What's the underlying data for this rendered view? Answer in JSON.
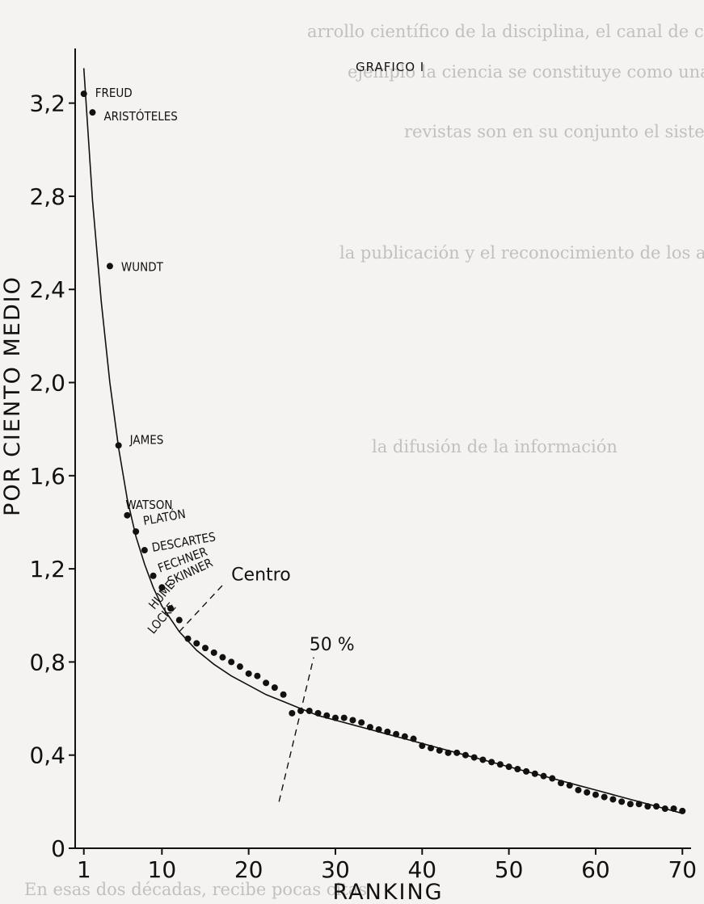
{
  "chart_data": {
    "type": "scatter",
    "title": "GRAFICO I",
    "xlabel": "RANKING",
    "ylabel": "POR CIENTO MEDIO",
    "xlim": [
      0,
      71
    ],
    "ylim": [
      0,
      3.4
    ],
    "x_ticks": [
      {
        "value": 1,
        "label": "1"
      },
      {
        "value": 10,
        "label": "10"
      },
      {
        "value": 20,
        "label": "20"
      },
      {
        "value": 30,
        "label": "30"
      },
      {
        "value": 40,
        "label": "40"
      },
      {
        "value": 50,
        "label": "50"
      },
      {
        "value": 60,
        "label": "60"
      },
      {
        "value": 70,
        "label": "70"
      }
    ],
    "y_ticks": [
      {
        "value": 0,
        "label": "0"
      },
      {
        "value": 0.4,
        "label": "0,4"
      },
      {
        "value": 0.8,
        "label": "0,8"
      },
      {
        "value": 1.2,
        "label": "1,2"
      },
      {
        "value": 1.6,
        "label": "1,6"
      },
      {
        "value": 2.0,
        "label": "2,0"
      },
      {
        "value": 2.4,
        "label": "2,4"
      },
      {
        "value": 2.8,
        "label": "2,8"
      },
      {
        "value": 3.2,
        "label": "3,2"
      }
    ],
    "grid": false,
    "points": [
      {
        "x": 1,
        "y": 3.24,
        "label": "FREUD"
      },
      {
        "x": 2,
        "y": 3.16,
        "label": "ARISTÓTELES"
      },
      {
        "x": 4,
        "y": 2.5,
        "label": "WUNDT"
      },
      {
        "x": 5,
        "y": 1.73,
        "label": "JAMES"
      },
      {
        "x": 6,
        "y": 1.43,
        "label": "WATSON"
      },
      {
        "x": 7,
        "y": 1.36,
        "label": "PLATÓN"
      },
      {
        "x": 8,
        "y": 1.28,
        "label": "DESCARTES"
      },
      {
        "x": 9,
        "y": 1.17,
        "label": "FECHNER"
      },
      {
        "x": 10,
        "y": 1.12,
        "label": "SKINNER"
      },
      {
        "x": 11,
        "y": 1.03,
        "label": "HUME"
      },
      {
        "x": 12,
        "y": 0.98,
        "label": "LOCKE"
      },
      {
        "x": 13,
        "y": 0.9,
        "label": ""
      },
      {
        "x": 14,
        "y": 0.88,
        "label": ""
      },
      {
        "x": 15,
        "y": 0.86,
        "label": ""
      },
      {
        "x": 16,
        "y": 0.84,
        "label": ""
      },
      {
        "x": 17,
        "y": 0.82,
        "label": ""
      },
      {
        "x": 18,
        "y": 0.8,
        "label": ""
      },
      {
        "x": 19,
        "y": 0.78,
        "label": ""
      },
      {
        "x": 20,
        "y": 0.75,
        "label": ""
      },
      {
        "x": 21,
        "y": 0.74,
        "label": ""
      },
      {
        "x": 22,
        "y": 0.71,
        "label": ""
      },
      {
        "x": 23,
        "y": 0.69,
        "label": ""
      },
      {
        "x": 24,
        "y": 0.66,
        "label": ""
      },
      {
        "x": 25,
        "y": 0.58,
        "label": ""
      },
      {
        "x": 26,
        "y": 0.59,
        "label": ""
      },
      {
        "x": 27,
        "y": 0.59,
        "label": ""
      },
      {
        "x": 28,
        "y": 0.58,
        "label": ""
      },
      {
        "x": 29,
        "y": 0.57,
        "label": ""
      },
      {
        "x": 30,
        "y": 0.56,
        "label": ""
      },
      {
        "x": 31,
        "y": 0.56,
        "label": ""
      },
      {
        "x": 32,
        "y": 0.55,
        "label": ""
      },
      {
        "x": 33,
        "y": 0.54,
        "label": ""
      },
      {
        "x": 34,
        "y": 0.52,
        "label": ""
      },
      {
        "x": 35,
        "y": 0.51,
        "label": ""
      },
      {
        "x": 36,
        "y": 0.5,
        "label": ""
      },
      {
        "x": 37,
        "y": 0.49,
        "label": ""
      },
      {
        "x": 38,
        "y": 0.48,
        "label": ""
      },
      {
        "x": 39,
        "y": 0.47,
        "label": ""
      },
      {
        "x": 40,
        "y": 0.44,
        "label": ""
      },
      {
        "x": 41,
        "y": 0.43,
        "label": ""
      },
      {
        "x": 42,
        "y": 0.42,
        "label": ""
      },
      {
        "x": 43,
        "y": 0.41,
        "label": ""
      },
      {
        "x": 44,
        "y": 0.41,
        "label": ""
      },
      {
        "x": 45,
        "y": 0.4,
        "label": ""
      },
      {
        "x": 46,
        "y": 0.39,
        "label": ""
      },
      {
        "x": 47,
        "y": 0.38,
        "label": ""
      },
      {
        "x": 48,
        "y": 0.37,
        "label": ""
      },
      {
        "x": 49,
        "y": 0.36,
        "label": ""
      },
      {
        "x": 50,
        "y": 0.35,
        "label": ""
      },
      {
        "x": 51,
        "y": 0.34,
        "label": ""
      },
      {
        "x": 52,
        "y": 0.33,
        "label": ""
      },
      {
        "x": 53,
        "y": 0.32,
        "label": ""
      },
      {
        "x": 54,
        "y": 0.31,
        "label": ""
      },
      {
        "x": 55,
        "y": 0.3,
        "label": ""
      },
      {
        "x": 56,
        "y": 0.28,
        "label": ""
      },
      {
        "x": 57,
        "y": 0.27,
        "label": ""
      },
      {
        "x": 58,
        "y": 0.25,
        "label": ""
      },
      {
        "x": 59,
        "y": 0.24,
        "label": ""
      },
      {
        "x": 60,
        "y": 0.23,
        "label": ""
      },
      {
        "x": 61,
        "y": 0.22,
        "label": ""
      },
      {
        "x": 62,
        "y": 0.21,
        "label": ""
      },
      {
        "x": 63,
        "y": 0.2,
        "label": ""
      },
      {
        "x": 64,
        "y": 0.19,
        "label": ""
      },
      {
        "x": 65,
        "y": 0.19,
        "label": ""
      },
      {
        "x": 66,
        "y": 0.18,
        "label": ""
      },
      {
        "x": 67,
        "y": 0.18,
        "label": ""
      },
      {
        "x": 68,
        "y": 0.17,
        "label": ""
      },
      {
        "x": 69,
        "y": 0.17,
        "label": ""
      },
      {
        "x": 70,
        "y": 0.16,
        "label": ""
      }
    ],
    "curve": {
      "x": [
        1,
        2,
        3,
        4,
        5,
        6,
        7,
        8,
        9,
        10,
        12,
        14,
        16,
        18,
        20,
        22,
        24,
        26,
        28,
        30,
        32,
        34,
        36,
        38,
        40,
        42,
        44,
        46,
        48,
        50,
        52,
        54,
        56,
        58,
        60,
        62,
        64,
        66,
        68,
        70
      ],
      "y": [
        3.35,
        2.78,
        2.35,
        2.0,
        1.72,
        1.5,
        1.34,
        1.22,
        1.12,
        1.04,
        0.93,
        0.85,
        0.79,
        0.74,
        0.7,
        0.66,
        0.63,
        0.6,
        0.57,
        0.55,
        0.53,
        0.51,
        0.49,
        0.47,
        0.45,
        0.43,
        0.41,
        0.39,
        0.37,
        0.35,
        0.33,
        0.31,
        0.29,
        0.27,
        0.25,
        0.23,
        0.21,
        0.19,
        0.17,
        0.15
      ]
    },
    "annotations": [
      {
        "text": "Centro",
        "x": 18,
        "y": 1.15
      },
      {
        "text": "50 %",
        "x": 27,
        "y": 0.85
      }
    ]
  },
  "colors": {
    "ink": "#111111",
    "paper": "#f4f3f1",
    "bleed": "#9a9893"
  },
  "bleed_through": [
    "arrollo científico de la disciplina, el canal de comunicación",
    "ejemplo la ciencia se constituye como una institución social",
    "revistas son en su conjunto el sistema de comunicación",
    "la publicación y el reconocimiento de los autores",
    "la difusión de la información",
    "En esas dos décadas, recibe pocas citas"
  ]
}
